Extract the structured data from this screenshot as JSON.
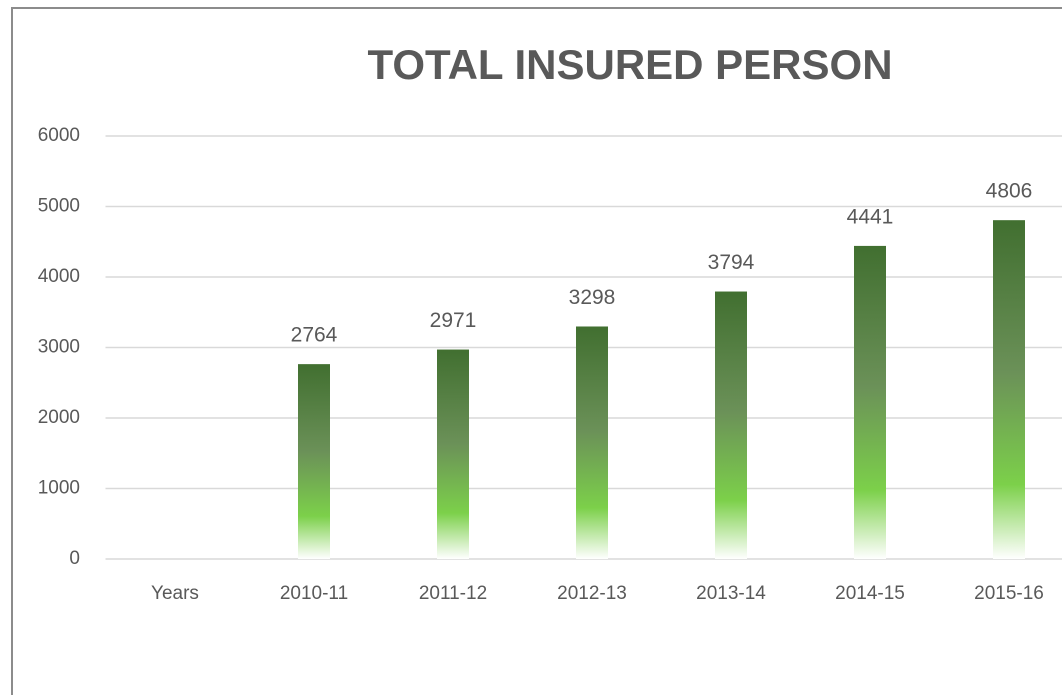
{
  "chart_data": {
    "type": "bar",
    "title": "TOTAL INSURED PERSON",
    "categories": [
      "Years",
      "2010-11",
      "2011-12",
      "2012-13",
      "2013-14",
      "2014-15",
      "2015-16"
    ],
    "values": [
      null,
      2764,
      2971,
      3298,
      3794,
      4441,
      4806
    ],
    "color": "#416f30",
    "ylim": [
      0,
      6000
    ],
    "yticks": [
      0,
      1000,
      2000,
      3000,
      4000,
      5000,
      6000
    ],
    "grid": true
  }
}
